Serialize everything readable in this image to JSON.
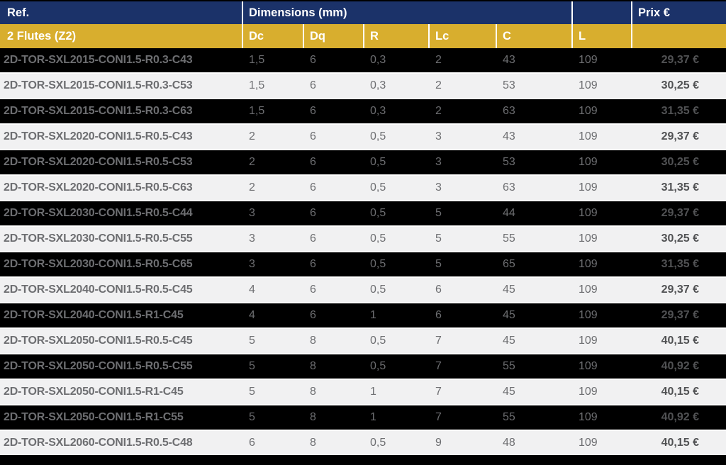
{
  "table": {
    "header": {
      "ref_label": "Ref.",
      "dimensions_label": "Dimensions (mm)",
      "price_label": "Prix €"
    },
    "subheader": {
      "flutes_label": "2 Flutes (Z2)",
      "columns": [
        "Dc",
        "Dq",
        "R",
        "Lc",
        "C",
        "L"
      ]
    },
    "rows": [
      {
        "ref": "2D-TOR-SXL2015-CONI1.5-R0.3-C43",
        "dc": "1,5",
        "dq": "6",
        "r": "0,3",
        "lc": "2",
        "c": "43",
        "l": "109",
        "price": "29,37 €"
      },
      {
        "ref": "2D-TOR-SXL2015-CONI1.5-R0.3-C53",
        "dc": "1,5",
        "dq": "6",
        "r": "0,3",
        "lc": "2",
        "c": "53",
        "l": "109",
        "price": "30,25 €"
      },
      {
        "ref": "2D-TOR-SXL2015-CONI1.5-R0.3-C63",
        "dc": "1,5",
        "dq": "6",
        "r": "0,3",
        "lc": "2",
        "c": "63",
        "l": "109",
        "price": "31,35 €"
      },
      {
        "ref": "2D-TOR-SXL2020-CONI1.5-R0.5-C43",
        "dc": "2",
        "dq": "6",
        "r": "0,5",
        "lc": "3",
        "c": "43",
        "l": "109",
        "price": "29,37 €"
      },
      {
        "ref": "2D-TOR-SXL2020-CONI1.5-R0.5-C53",
        "dc": "2",
        "dq": "6",
        "r": "0,5",
        "lc": "3",
        "c": "53",
        "l": "109",
        "price": "30,25 €"
      },
      {
        "ref": "2D-TOR-SXL2020-CONI1.5-R0.5-C63",
        "dc": "2",
        "dq": "6",
        "r": "0,5",
        "lc": "3",
        "c": "63",
        "l": "109",
        "price": "31,35 €"
      },
      {
        "ref": "2D-TOR-SXL2030-CONI1.5-R0.5-C44",
        "dc": "3",
        "dq": "6",
        "r": "0,5",
        "lc": "5",
        "c": "44",
        "l": "109",
        "price": "29,37 €"
      },
      {
        "ref": "2D-TOR-SXL2030-CONI1.5-R0.5-C55",
        "dc": "3",
        "dq": "6",
        "r": "0,5",
        "lc": "5",
        "c": "55",
        "l": "109",
        "price": "30,25 €"
      },
      {
        "ref": "2D-TOR-SXL2030-CONI1.5-R0.5-C65",
        "dc": "3",
        "dq": "6",
        "r": "0,5",
        "lc": "5",
        "c": "65",
        "l": "109",
        "price": "31,35 €"
      },
      {
        "ref": "2D-TOR-SXL2040-CONI1.5-R0.5-C45",
        "dc": "4",
        "dq": "6",
        "r": "0,5",
        "lc": "6",
        "c": "45",
        "l": "109",
        "price": "29,37 €"
      },
      {
        "ref": "2D-TOR-SXL2040-CONI1.5-R1-C45",
        "dc": "4",
        "dq": "6",
        "r": "1",
        "lc": "6",
        "c": "45",
        "l": "109",
        "price": "29,37 €"
      },
      {
        "ref": "2D-TOR-SXL2050-CONI1.5-R0.5-C45",
        "dc": "5",
        "dq": "8",
        "r": "0,5",
        "lc": "7",
        "c": "45",
        "l": "109",
        "price": "40,15 €"
      },
      {
        "ref": "2D-TOR-SXL2050-CONI1.5-R0.5-C55",
        "dc": "5",
        "dq": "8",
        "r": "0,5",
        "lc": "7",
        "c": "55",
        "l": "109",
        "price": "40,92 €"
      },
      {
        "ref": "2D-TOR-SXL2050-CONI1.5-R1-C45",
        "dc": "5",
        "dq": "8",
        "r": "1",
        "lc": "7",
        "c": "45",
        "l": "109",
        "price": "40,15 €"
      },
      {
        "ref": "2D-TOR-SXL2050-CONI1.5-R1-C55",
        "dc": "5",
        "dq": "8",
        "r": "1",
        "lc": "7",
        "c": "55",
        "l": "109",
        "price": "40,92 €"
      },
      {
        "ref": "2D-TOR-SXL2060-CONI1.5-R0.5-C48",
        "dc": "6",
        "dq": "8",
        "r": "0,5",
        "lc": "9",
        "c": "48",
        "l": "109",
        "price": "40,15 €"
      }
    ]
  },
  "colors": {
    "header_navy": "#1b3269",
    "subheader_gold": "#d8ae2e",
    "row_dark": "#000000",
    "row_light": "#f1f1f2",
    "text_gray": "#6d6e71",
    "price_gray": "#515254"
  }
}
